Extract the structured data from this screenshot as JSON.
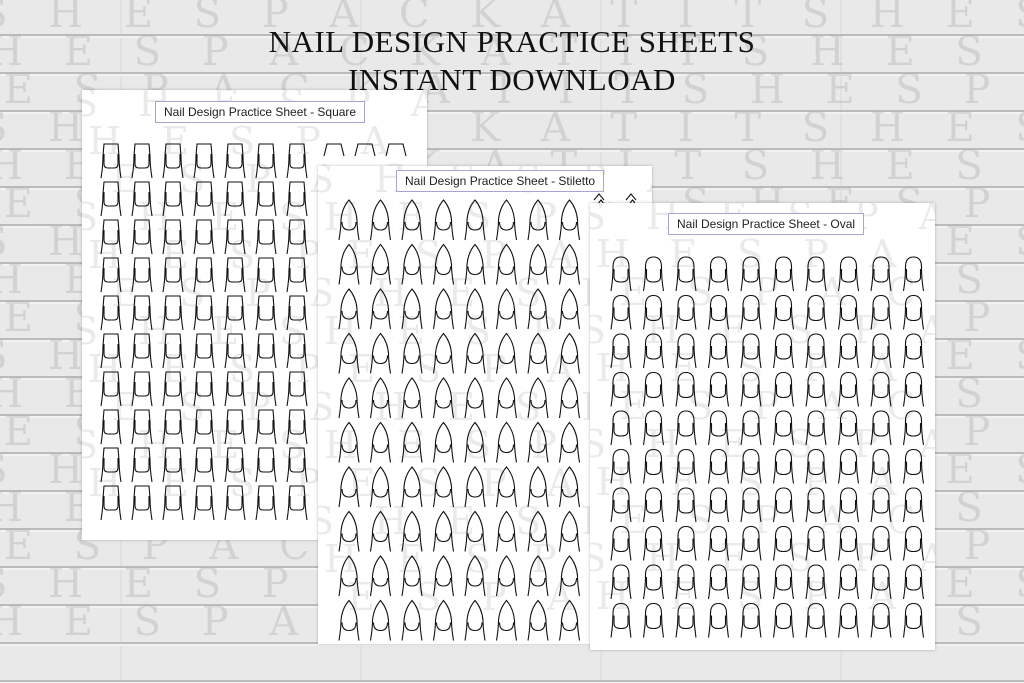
{
  "headline": {
    "line1": "NAIL DESIGN PRACTICE SHEETS",
    "line2": "INSTANT DOWNLOAD"
  },
  "watermark": "SHESPACKATIT",
  "sheets": [
    {
      "label": "Nail Design Practice Sheet - Square",
      "shape": "square"
    },
    {
      "label": "Nail Design Practice Sheet - Stiletto",
      "shape": "stiletto"
    },
    {
      "label": "Nail Design Practice Sheet - Oval",
      "shape": "oval"
    }
  ],
  "colors": {
    "label_border": "#a9a4d6",
    "background": "#e9e9e9"
  }
}
